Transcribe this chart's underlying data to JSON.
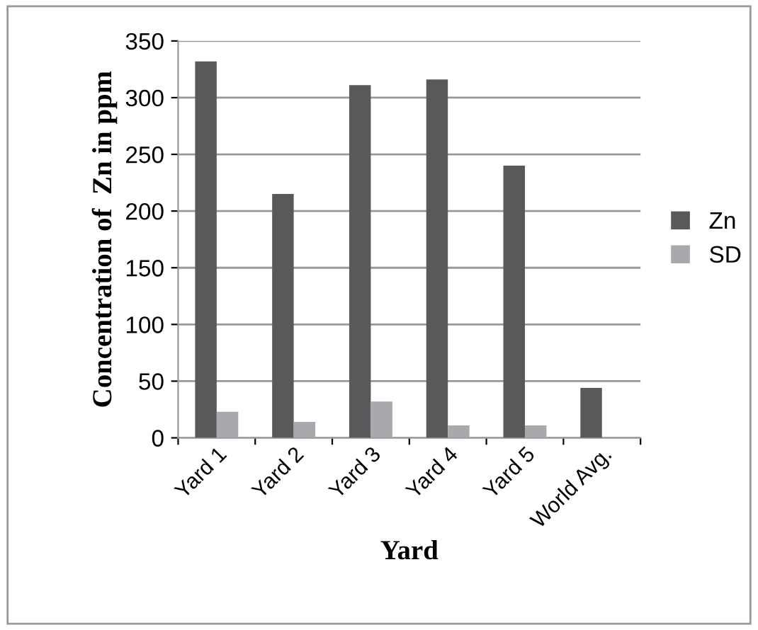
{
  "chart_data": {
    "type": "bar",
    "xlabel": "Yard",
    "ylabel": "Concentration of  Zn in ppm",
    "categories": [
      "Yard 1",
      "Yard 2",
      "Yard 3",
      "Yard 4",
      "Yard 5",
      "World Avg."
    ],
    "series": [
      {
        "name": "Zn",
        "color": "#58595b",
        "values": [
          332,
          215,
          311,
          316,
          240,
          44
        ]
      },
      {
        "name": "SD",
        "color": "#a7a9ac",
        "values": [
          23,
          14,
          32,
          11,
          11,
          null
        ]
      }
    ],
    "ylim": [
      0,
      350
    ],
    "yticks": [
      0,
      50,
      100,
      150,
      200,
      250,
      300,
      350
    ],
    "grid": "y",
    "legend": "right"
  }
}
